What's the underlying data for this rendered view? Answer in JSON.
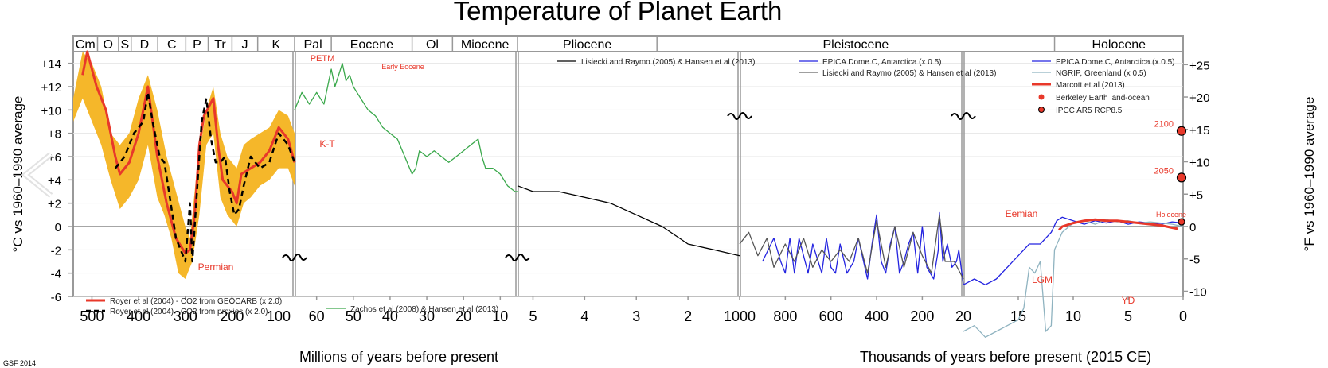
{
  "chart_data": {
    "type": "line",
    "title": "Temperature of Planet Earth",
    "credit": "GSF 2014",
    "ylabel_left": "°C vs 1960–1990 average",
    "ylabel_right": "°F vs 1960–1990 average",
    "xlabel_left": "Millions of years before present",
    "xlabel_right": "Thousands of years before present (2015 CE)",
    "ylim_c": [
      -6,
      15
    ],
    "yticks_c": [
      {
        "v": 14,
        "label": "+14"
      },
      {
        "v": 12,
        "label": "+12"
      },
      {
        "v": 10,
        "label": "+10"
      },
      {
        "v": 8,
        "label": "+8"
      },
      {
        "v": 6,
        "label": "+6"
      },
      {
        "v": 4,
        "label": "+4"
      },
      {
        "v": 2,
        "label": "+2"
      },
      {
        "v": 0,
        "label": "0"
      },
      {
        "v": -2,
        "label": "-2"
      },
      {
        "v": -4,
        "label": "-4"
      },
      {
        "v": -6,
        "label": "-6"
      }
    ],
    "yticks_f": [
      {
        "v": 25,
        "label": "+25"
      },
      {
        "v": 20,
        "label": "+20"
      },
      {
        "v": 15,
        "label": "+15"
      },
      {
        "v": 10,
        "label": "+10"
      },
      {
        "v": 5,
        "label": "+5"
      },
      {
        "v": 0,
        "label": "0"
      },
      {
        "v": -5,
        "label": "-5"
      },
      {
        "v": -10,
        "label": "-10"
      }
    ],
    "grid": true,
    "panels": [
      {
        "scale": "Millions of years before present",
        "range": [
          540,
          66
        ],
        "xticks": [
          500,
          400,
          300,
          200,
          100
        ],
        "periods": [
          {
            "label": "Cm",
            "from": 540,
            "to": 488
          },
          {
            "label": "O",
            "from": 488,
            "to": 443
          },
          {
            "label": "S",
            "from": 443,
            "to": 416
          },
          {
            "label": "D",
            "from": 416,
            "to": 359
          },
          {
            "label": "C",
            "from": 359,
            "to": 299
          },
          {
            "label": "P",
            "from": 299,
            "to": 251
          },
          {
            "label": "Tr",
            "from": 251,
            "to": 200
          },
          {
            "label": "J",
            "from": 200,
            "to": 145
          },
          {
            "label": "K",
            "from": 145,
            "to": 66
          }
        ],
        "series": [
          {
            "name": "Royer et al (2004) - CO2 from GEOCARB (x 2.0)",
            "color": "#e8382a",
            "style": "solid",
            "x": [
              520,
              510,
              490,
              470,
              450,
              440,
              420,
              400,
              380,
              370,
              360,
              340,
              320,
              300,
              290,
              280,
              270,
              260,
              240,
              230,
              220,
              200,
              190,
              180,
              160,
              140,
              120,
              100,
              80,
              66
            ],
            "y": [
              13,
              15,
              12,
              10,
              6,
              4.5,
              5.5,
              8,
              12,
              9,
              6,
              2,
              -1,
              -2.3,
              -2,
              1,
              7,
              9.5,
              11,
              7,
              4,
              3,
              2,
              4.5,
              5,
              5.5,
              6.5,
              8.5,
              7.5,
              5.5
            ]
          },
          {
            "name": "Royer et al (2004) - CO2 from proxies (x 2.0)",
            "color": "#000000",
            "style": "dashed",
            "x": [
              450,
              430,
              410,
              390,
              380,
              370,
              355,
              345,
              335,
              320,
              310,
              300,
              290,
              285,
              275,
              265,
              255,
              245,
              235,
              225,
              215,
              205,
              195,
              185,
              175,
              160,
              140,
              120,
              100,
              80,
              66
            ],
            "y": [
              5,
              6,
              8,
              9,
              11.5,
              9,
              6,
              5.5,
              3,
              -1,
              -2,
              -3,
              2,
              -3,
              3,
              9,
              11,
              7.5,
              5.5,
              5.5,
              6,
              3,
              1,
              1.5,
              3.5,
              6,
              5,
              5.5,
              8,
              7,
              5.5
            ]
          }
        ],
        "annotations": [
          "Permian"
        ]
      },
      {
        "scale": "Millions of years before present",
        "range": [
          66,
          5.3
        ],
        "xticks": [
          60,
          50,
          40,
          30,
          20,
          10
        ],
        "periods": [
          {
            "label": "Pal",
            "from": 66,
            "to": 56
          },
          {
            "label": "Eocene",
            "from": 56,
            "to": 34
          },
          {
            "label": "Ol",
            "from": 34,
            "to": 23
          },
          {
            "label": "Miocene",
            "from": 23,
            "to": 5.3
          }
        ],
        "series": [
          {
            "name": "Zachos et al (2008) & Hansen et al (2013)",
            "color": "#3aa84b",
            "style": "solid",
            "x": [
              66,
              64,
              62,
              60,
              58,
              57,
              56,
              55,
              54,
              53,
              52,
              51,
              50,
              48,
              46,
              44,
              42,
              40,
              38,
              36,
              34,
              33,
              32,
              30,
              28,
              26,
              24,
              22,
              20,
              18,
              16,
              15,
              14,
              12,
              10,
              8,
              6,
              5.3
            ],
            "y": [
              10,
              11.5,
              10.5,
              11.5,
              10.5,
              12,
              13.5,
              12,
              13,
              14,
              12.5,
              13,
              12,
              11,
              10,
              9.5,
              8.5,
              8,
              7.5,
              6,
              4.5,
              5,
              6.5,
              6,
              6.5,
              6,
              5.5,
              6,
              6.5,
              7,
              7.5,
              6,
              5,
              5,
              4.5,
              3.5,
              3,
              3
            ]
          }
        ],
        "annotations": [
          "PETM",
          "Early Eocene",
          "K-T"
        ]
      },
      {
        "scale": "Millions of years before present",
        "range": [
          5.3,
          1
        ],
        "xticks": [
          5,
          4,
          3,
          2,
          1
        ],
        "periods": [
          {
            "label": "Pliocene",
            "from": 5.3,
            "to": 2.6
          },
          {
            "label": "Pleistocene",
            "from": 2.6,
            "to": 0.012
          }
        ],
        "series": [
          {
            "name": "Lisiecki and Raymo (2005) & Hansen et al (2013)",
            "color": "#000000",
            "style": "solid",
            "x": [
              5.3,
              5,
              4.5,
              4,
              3.5,
              3,
              2.5,
              2,
              1.5,
              1
            ],
            "y": [
              3.5,
              3,
              3,
              2.5,
              2,
              1,
              0,
              -1.5,
              -2,
              -2.5
            ]
          }
        ],
        "annotations": []
      },
      {
        "scale": "Thousands of years before present",
        "range": [
          1000,
          20
        ],
        "xticks": [
          800,
          600,
          400,
          200
        ],
        "xtick_labels_shared": [
          "1000",
          "20"
        ],
        "series": [
          {
            "name": "EPICA Dome C, Antarctica (x 0.5)",
            "color": "#2323e0",
            "style": "solid",
            "x": [
              900,
              850,
              820,
              800,
              780,
              760,
              740,
              700,
              680,
              640,
              620,
              600,
              580,
              560,
              530,
              500,
              480,
              440,
              420,
              400,
              380,
              360,
              340,
              320,
              300,
              280,
              260,
              240,
              220,
              200,
              180,
              150,
              130,
              125,
              110,
              90,
              70,
              50,
              40,
              20
            ],
            "y": [
              -3,
              -1,
              -3,
              -4,
              -1,
              -4,
              -1,
              -4,
              -1.5,
              -4,
              -1,
              -3.5,
              -4,
              -1.5,
              -4,
              -3,
              -1,
              -4.5,
              -1.5,
              1,
              -3,
              -4,
              -1.5,
              0,
              -4,
              -3,
              -1.5,
              -0.5,
              -4,
              0,
              -3.5,
              -4.5,
              -2,
              1.2,
              -3,
              -1.5,
              -3.5,
              -3,
              -2,
              -5
            ]
          },
          {
            "name": "Lisiecki and Raymo (2005) & Hansen et al (2013)",
            "color": "#555555",
            "style": "solid",
            "x": [
              1000,
              960,
              920,
              880,
              850,
              800,
              760,
              720,
              680,
              640,
              600,
              560,
              520,
              480,
              440,
              400,
              360,
              320,
              280,
              240,
              200,
              160,
              125,
              100,
              60,
              20
            ],
            "y": [
              -1.5,
              -0.5,
              -2.5,
              -1,
              -3.5,
              -1.5,
              -3,
              -1,
              -3.5,
              -2,
              -3,
              -2,
              -3,
              -1,
              -4,
              0.5,
              -3.5,
              0,
              -3.5,
              -0.5,
              -2.5,
              -4,
              1,
              -3,
              -3,
              -4.5
            ]
          }
        ],
        "annotations": [
          "Eemian"
        ]
      },
      {
        "scale": "Thousands of years before present",
        "range": [
          20,
          0
        ],
        "xticks": [
          15,
          10,
          5,
          0
        ],
        "periods": [
          {
            "label": "Holocene",
            "from": 11.7,
            "to": 0
          }
        ],
        "series": [
          {
            "name": "EPICA Dome C, Antarctica (x 0.5)",
            "color": "#2323e0",
            "style": "solid",
            "x": [
              20,
              19,
              18,
              17,
              16,
              15,
              14,
              13,
              12,
              11.5,
              11,
              10,
              9,
              8,
              7,
              6,
              5,
              4,
              3,
              2,
              1,
              0
            ],
            "y": [
              -5,
              -4.5,
              -5,
              -4.5,
              -3.5,
              -2.5,
              -1.5,
              -1.5,
              -0.5,
              0.5,
              0.8,
              0.5,
              0.2,
              0.5,
              0.3,
              0.5,
              0.2,
              0.4,
              0.3,
              0.2,
              0.4,
              0.3
            ]
          },
          {
            "name": "NGRIP, Greenland (x 0.5)",
            "color": "#8fb3c0",
            "style": "solid",
            "x": [
              20,
              19,
              18,
              17,
              16,
              15,
              14.5,
              14,
              13.5,
              13,
              12.5,
              12,
              11.7,
              11,
              10,
              9,
              8,
              7,
              6,
              5,
              4,
              3,
              2,
              1,
              0
            ],
            "y": [
              -9,
              -8.5,
              -9.5,
              -9,
              -8.5,
              -8,
              -7,
              -3.5,
              -4,
              -3,
              -9,
              -8.5,
              -2,
              -0.5,
              0.3,
              0.5,
              0.2,
              0.6,
              0.4,
              0.5,
              0.3,
              0.4,
              0.3,
              0.2,
              0
            ]
          },
          {
            "name": "Marcott et al (2013)",
            "color": "#e8382a",
            "style": "solid",
            "x": [
              11.3,
              11,
              10,
              9,
              8,
              7,
              6,
              5,
              4,
              3,
              2,
              1,
              0.5
            ],
            "y": [
              -0.3,
              0,
              0.3,
              0.5,
              0.6,
              0.5,
              0.5,
              0.4,
              0.3,
              0.2,
              0.1,
              -0.1,
              -0.2
            ]
          }
        ],
        "points": [
          {
            "name": "Berkeley Earth land-ocean",
            "x": 0,
            "y": 0.4,
            "color": "#e8382a"
          },
          {
            "name": "IPCC AR5 RCP8.5",
            "label": "2050",
            "x": 0,
            "y": 4.2,
            "color": "#e8382a"
          },
          {
            "name": "IPCC AR5 RCP8.5",
            "label": "2100",
            "x": 0,
            "y": 8.2,
            "color": "#e8382a"
          }
        ],
        "annotations": [
          "LGM",
          "YD",
          "Holocene"
        ]
      }
    ],
    "legends": [
      {
        "panel": 0,
        "items": [
          "Royer et al (2004) - CO2 from GEOCARB (x 2.0)",
          "Royer et al (2004) - CO2 from proxies (x 2.0)"
        ]
      },
      {
        "panel": 1,
        "items": [
          "Zachos et al (2008) & Hansen et al (2013)"
        ]
      },
      {
        "panel": 2,
        "items": [
          "Lisiecki and Raymo (2005) & Hansen et al (2013)"
        ]
      },
      {
        "panel": 3,
        "items": [
          "EPICA Dome C, Antarctica (x 0.5)",
          "Lisiecki and Raymo (2005) & Hansen et al (2013)"
        ]
      },
      {
        "panel": 4,
        "items": [
          "EPICA Dome C, Antarctica (x 0.5)",
          "NGRIP, Greenland (x 0.5)",
          "Marcott et al (2013)",
          "Berkeley Earth land-ocean",
          "IPCC AR5 RCP8.5"
        ]
      }
    ],
    "colors": {
      "royer_band": "#f5b72a",
      "geocarb": "#e8382a",
      "zachos": "#3aa84b",
      "epica": "#2323e0",
      "ngrip": "#8fb3c0",
      "annotation": "#e8382a",
      "grid": "#999999"
    }
  }
}
